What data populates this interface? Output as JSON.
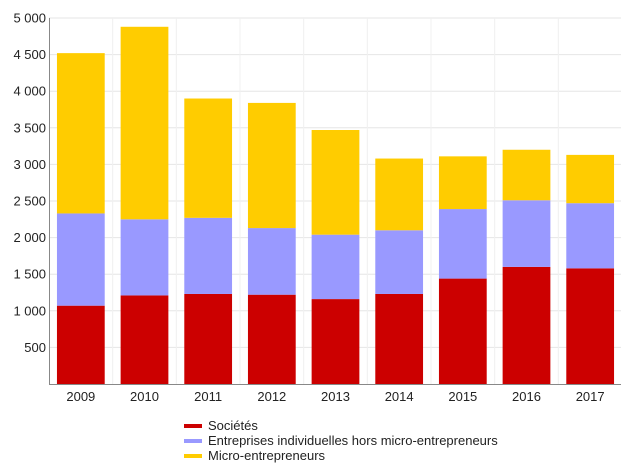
{
  "chart_data": {
    "type": "bar",
    "stacked": true,
    "categories": [
      "2009",
      "2010",
      "2011",
      "2012",
      "2013",
      "2014",
      "2015",
      "2016",
      "2017"
    ],
    "series": [
      {
        "name": "Sociétés",
        "color": "#cc0000",
        "values": [
          1070,
          1210,
          1230,
          1220,
          1160,
          1230,
          1440,
          1600,
          1580
        ]
      },
      {
        "name": "Entreprises individuelles hors micro-entrepreneurs",
        "color": "#9999ff",
        "values": [
          1260,
          1040,
          1040,
          910,
          880,
          870,
          950,
          910,
          890
        ]
      },
      {
        "name": "Micro-entrepreneurs",
        "color": "#ffcc00",
        "values": [
          2190,
          2630,
          1630,
          1710,
          1430,
          980,
          720,
          690,
          660
        ]
      }
    ],
    "y_ticks": [
      500,
      1000,
      1500,
      2000,
      2500,
      3000,
      3500,
      4000,
      4500,
      5000
    ],
    "y_tick_labels": [
      "500",
      "1 000",
      "1 500",
      "2 000",
      "2 500",
      "3 000",
      "3 500",
      "4 000",
      "4 500",
      "5 000"
    ],
    "ylim": [
      0,
      5000
    ],
    "grid": true,
    "legend_position": "bottom"
  }
}
